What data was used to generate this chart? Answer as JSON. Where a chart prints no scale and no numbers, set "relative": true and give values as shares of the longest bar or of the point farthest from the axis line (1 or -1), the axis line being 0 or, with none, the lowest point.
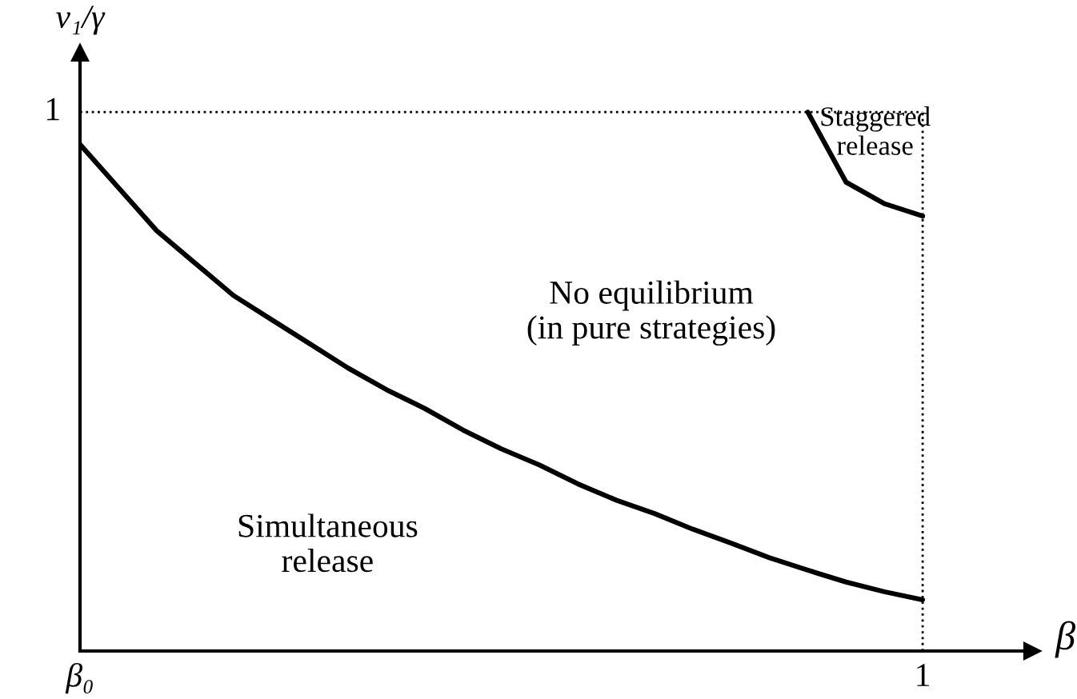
{
  "chart_data": {
    "type": "line",
    "xlabel": "β",
    "ylabel": "v₁/γ",
    "relative": true,
    "categories": [
      null,
      null,
      null,
      null,
      null,
      null,
      null,
      null,
      null,
      null,
      null,
      null,
      null,
      null,
      null,
      null,
      null,
      null,
      null,
      null,
      null,
      null,
      null
    ],
    "series": [
      {
        "color": "#000000",
        "values": [
          0.94,
          0.86,
          0.78,
          0.72,
          0.66,
          0.615,
          0.57,
          0.525,
          0.485,
          0.45,
          0.41,
          0.375,
          0.345,
          0.31,
          0.28,
          0.255,
          0.226,
          0.2,
          0.173,
          0.15,
          0.128,
          0.11,
          0.095
        ]
      },
      {
        "color": "#000000",
        "values": [
          null,
          null,
          null,
          null,
          null,
          null,
          null,
          null,
          null,
          null,
          null,
          null,
          null,
          null,
          null,
          null,
          null,
          null,
          null,
          1,
          0.87,
          0.83,
          0.807
        ]
      }
    ],
    "ref_lines": [
      {
        "axis": "y",
        "value": 1,
        "label": "1",
        "color": "#000000",
        "line_style": "dotted"
      },
      {
        "axis": "x",
        "label": "1",
        "color": "#000000",
        "line_style": "dotted"
      }
    ],
    "annotations": [
      "Staggered\nrelease",
      "No equilibrium\n(in pure strategies)",
      "Simultaneous\nrelease",
      "β₀"
    ],
    "marker": "none",
    "line_style": "solid"
  }
}
